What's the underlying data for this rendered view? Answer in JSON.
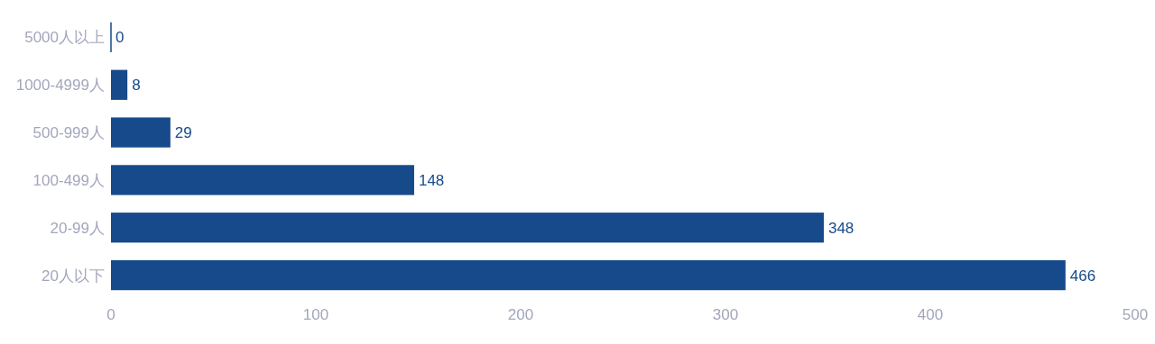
{
  "chart_data": {
    "type": "bar",
    "orientation": "horizontal",
    "categories": [
      "5000人以上",
      "1000-4999人",
      "500-999人",
      "100-499人",
      "20-99人",
      "20人以下"
    ],
    "values": [
      0,
      8,
      29,
      148,
      348,
      466
    ],
    "color": "#164a8a",
    "xlim": [
      0,
      500
    ],
    "xticks": [
      0,
      100,
      200,
      300,
      400,
      500
    ],
    "data_labels": true,
    "grid": false
  }
}
